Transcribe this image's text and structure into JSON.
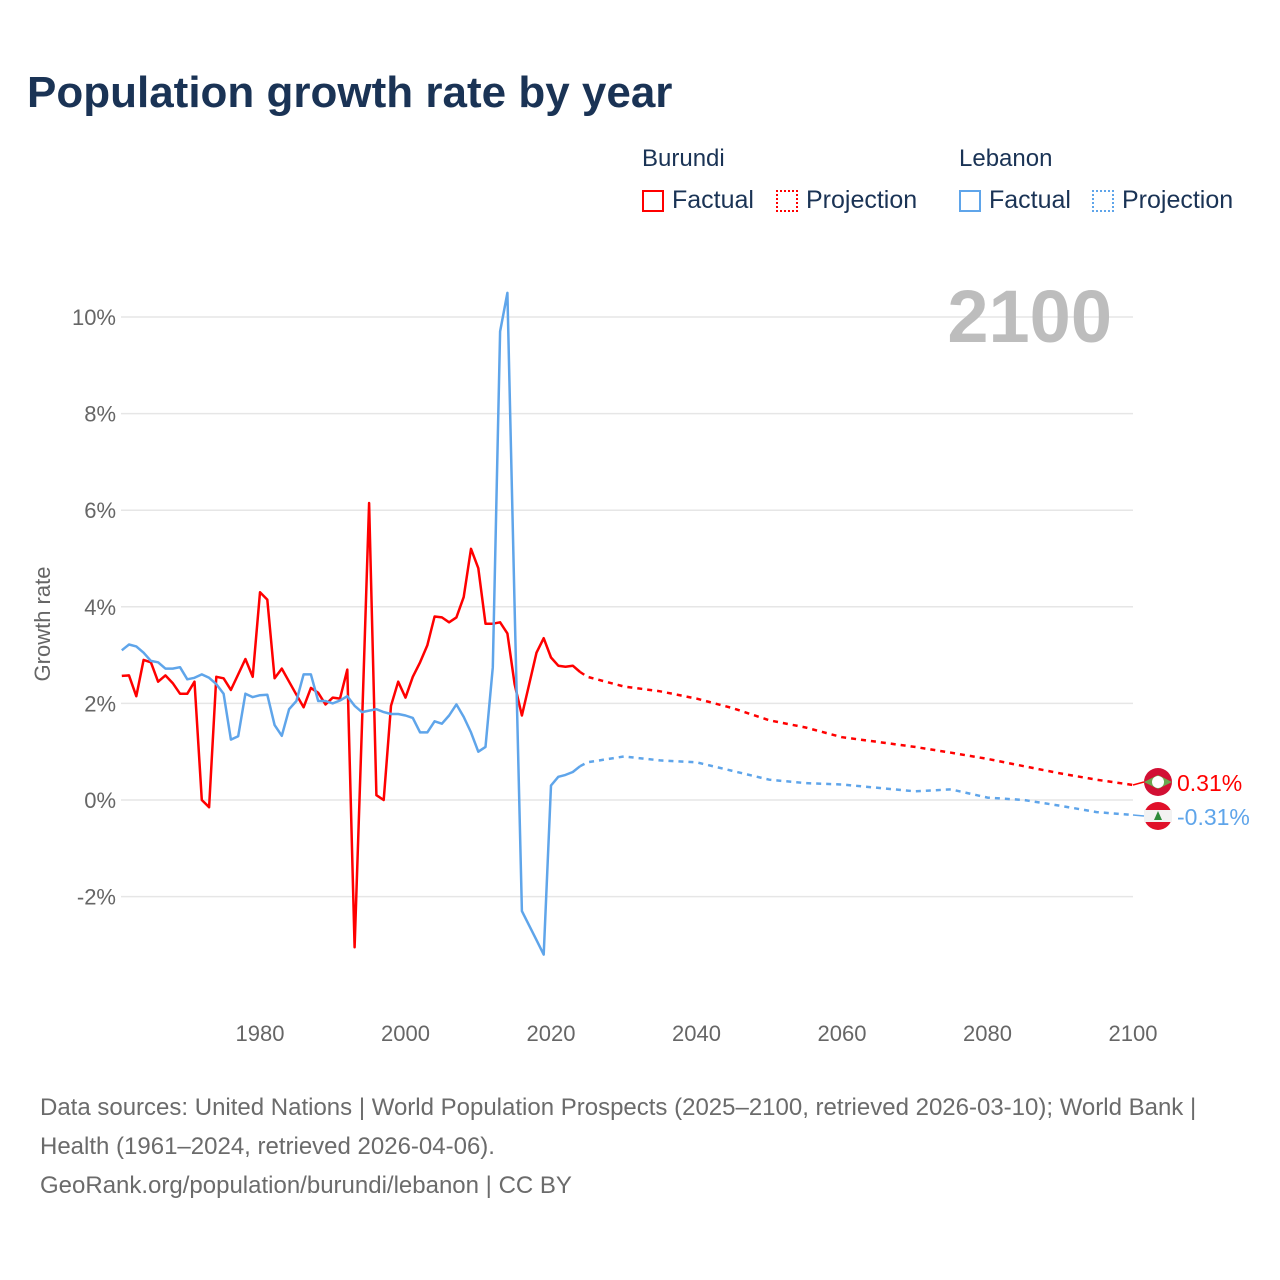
{
  "title": "Population growth rate by year",
  "legend": {
    "groups": [
      {
        "name": "Burundi",
        "factual": "Factual",
        "projection": "Projection",
        "color": "#ff0000"
      },
      {
        "name": "Lebanon",
        "factual": "Factual",
        "projection": "Projection",
        "color": "#5fa5ea"
      }
    ]
  },
  "footer": {
    "sources": "Data sources: United Nations | World Population Prospects (2025–2100, retrieved 2026-03-10); World Bank | Health (1961–2024, retrieved 2026-04-06).",
    "link": "GeoRank.org/population/burundi/lebanon | CC BY"
  },
  "chart_data": {
    "type": "line",
    "title": "Population growth rate by year",
    "ylabel": "Growth rate",
    "xlabel": "",
    "current_year_label": "2100",
    "xlim": [
      1961,
      2100
    ],
    "ylim": [
      -4,
      10.5
    ],
    "x_ticks": [
      1980,
      2000,
      2020,
      2040,
      2060,
      2080,
      2100
    ],
    "y_ticks": [
      -2,
      0,
      2,
      4,
      6,
      8,
      10
    ],
    "y_tick_labels": [
      "-2%",
      "0%",
      "2%",
      "4%",
      "6%",
      "8%",
      "10%"
    ],
    "grid": true,
    "legend_position": "top-right",
    "series": [
      {
        "name": "Burundi",
        "color": "#ff0000",
        "end_label": "0.31%",
        "factual": {
          "x_start": 1961,
          "values": [
            2.57,
            2.58,
            2.15,
            2.9,
            2.85,
            2.45,
            2.58,
            2.42,
            2.2,
            2.2,
            2.45,
            0.0,
            -0.15,
            2.55,
            2.52,
            2.28,
            2.6,
            2.92,
            2.55,
            4.3,
            4.15,
            2.52,
            2.72,
            2.45,
            2.18,
            1.92,
            2.32,
            2.22,
            1.98,
            2.12,
            2.1,
            2.7,
            -3.05,
            1.5,
            6.15,
            0.1,
            0.0,
            1.95,
            2.45,
            2.12,
            2.55,
            2.85,
            3.2,
            3.8,
            3.78,
            3.68,
            3.78,
            4.2,
            5.2,
            4.8,
            3.65,
            3.65,
            3.68,
            3.45,
            2.4,
            1.75,
            2.4,
            3.05,
            3.35,
            2.95,
            2.78,
            2.76,
            2.78,
            2.65
          ]
        },
        "projection": {
          "x": [
            2024,
            2025,
            2030,
            2035,
            2040,
            2045,
            2050,
            2055,
            2060,
            2065,
            2070,
            2075,
            2080,
            2085,
            2090,
            2095,
            2100
          ],
          "values": [
            2.65,
            2.55,
            2.35,
            2.25,
            2.1,
            1.9,
            1.65,
            1.5,
            1.3,
            1.2,
            1.1,
            0.98,
            0.85,
            0.7,
            0.55,
            0.42,
            0.31
          ]
        }
      },
      {
        "name": "Lebanon",
        "color": "#5fa5ea",
        "end_label": "-0.31%",
        "factual": {
          "x_start": 1961,
          "values": [
            3.1,
            3.22,
            3.18,
            3.05,
            2.88,
            2.85,
            2.72,
            2.72,
            2.75,
            2.5,
            2.53,
            2.6,
            2.53,
            2.4,
            2.2,
            1.25,
            1.32,
            2.2,
            2.13,
            2.17,
            2.18,
            1.55,
            1.33,
            1.88,
            2.05,
            2.6,
            2.6,
            2.05,
            2.05,
            2.0,
            2.06,
            2.15,
            1.95,
            1.82,
            1.85,
            1.88,
            1.82,
            1.78,
            1.78,
            1.75,
            1.7,
            1.4,
            1.4,
            1.63,
            1.58,
            1.75,
            1.98,
            1.72,
            1.4,
            1.0,
            1.1,
            2.75,
            9.7,
            10.5,
            4.0,
            -2.3,
            -2.6,
            -2.9,
            -3.2,
            0.3,
            0.48,
            0.52,
            0.58,
            0.7
          ]
        },
        "projection": {
          "x": [
            2024,
            2025,
            2030,
            2035,
            2040,
            2045,
            2050,
            2055,
            2060,
            2065,
            2070,
            2075,
            2080,
            2085,
            2090,
            2095,
            2100
          ],
          "values": [
            0.7,
            0.78,
            0.9,
            0.82,
            0.78,
            0.6,
            0.42,
            0.35,
            0.32,
            0.25,
            0.18,
            0.22,
            0.05,
            0.0,
            -0.12,
            -0.25,
            -0.31
          ]
        }
      }
    ]
  }
}
